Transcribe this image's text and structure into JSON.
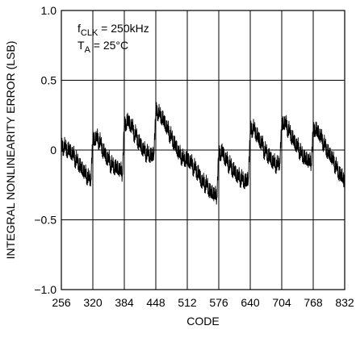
{
  "chart_data": {
    "type": "line",
    "title": "",
    "xlabel": "CODE",
    "ylabel": "INTEGRAL NONLINEARITY ERROR (LSB)",
    "xlim": [
      256,
      832
    ],
    "ylim": [
      -1.0,
      1.0
    ],
    "xticks": [
      256,
      320,
      384,
      448,
      512,
      576,
      640,
      704,
      768,
      832
    ],
    "xtick_labels": [
      "256",
      "320",
      "384",
      "448",
      "512",
      "576",
      "640",
      "704",
      "768",
      "832"
    ],
    "yticks": [
      -1.0,
      -0.5,
      0,
      0.5,
      1.0
    ],
    "ytick_labels": [
      "−1.0",
      "−0.5",
      "0",
      "0.5",
      "1.0"
    ],
    "grid": true,
    "annotations": {
      "fclk_main": "f",
      "fclk_sub": "CLK",
      "fclk_value": " = 250kHz",
      "ta_main": "T",
      "ta_sub": "A",
      "ta_value": " = 25°C"
    },
    "series": [
      {
        "values_x": [
          256,
          260,
          264,
          268,
          272,
          276,
          280,
          284,
          288,
          292,
          296,
          300,
          304,
          308,
          312,
          316,
          320,
          324,
          328,
          332,
          336,
          340,
          344,
          348,
          352,
          356,
          360,
          364,
          368,
          372,
          376,
          380,
          384,
          388,
          392,
          396,
          400,
          404,
          408,
          412,
          416,
          420,
          424,
          428,
          432,
          436,
          440,
          444,
          448,
          452,
          456,
          460,
          464,
          468,
          472,
          476,
          480,
          484,
          488,
          492,
          496,
          500,
          504,
          508,
          512,
          516,
          520,
          524,
          528,
          532,
          536,
          540,
          544,
          548,
          552,
          556,
          560,
          564,
          568,
          572,
          576,
          580,
          584,
          588,
          592,
          596,
          600,
          604,
          608,
          612,
          616,
          620,
          624,
          628,
          632,
          636,
          640,
          644,
          648,
          652,
          656,
          660,
          664,
          668,
          672,
          676,
          680,
          684,
          688,
          692,
          696,
          700,
          704,
          708,
          712,
          716,
          720,
          724,
          728,
          732,
          736,
          740,
          744,
          748,
          752,
          756,
          760,
          764,
          768,
          772,
          776,
          780,
          784,
          788,
          792,
          796,
          800,
          804,
          808,
          812,
          816,
          820,
          824,
          828,
          832
        ],
        "values_y": [
          0.04,
          0.01,
          0.05,
          -0.02,
          0.03,
          -0.04,
          0.0,
          -0.08,
          -0.05,
          -0.12,
          -0.1,
          -0.16,
          -0.14,
          -0.2,
          -0.18,
          -0.22,
          0.1,
          0.06,
          0.12,
          0.05,
          0.08,
          -0.02,
          0.01,
          -0.08,
          -0.03,
          -0.12,
          -0.08,
          -0.14,
          -0.1,
          -0.15,
          -0.12,
          -0.18,
          0.2,
          0.18,
          0.24,
          0.16,
          0.2,
          0.1,
          0.14,
          0.04,
          0.08,
          -0.01,
          0.03,
          -0.04,
          0.0,
          -0.05,
          -0.02,
          -0.04,
          0.3,
          0.26,
          0.28,
          0.22,
          0.24,
          0.16,
          0.18,
          0.1,
          0.12,
          0.04,
          0.06,
          -0.02,
          0.0,
          -0.06,
          -0.04,
          -0.08,
          -0.04,
          -0.1,
          -0.06,
          -0.14,
          -0.1,
          -0.18,
          -0.14,
          -0.24,
          -0.2,
          -0.26,
          -0.22,
          -0.3,
          -0.28,
          -0.32,
          -0.3,
          -0.34,
          0.0,
          -0.04,
          0.02,
          -0.08,
          -0.04,
          -0.12,
          -0.08,
          -0.16,
          -0.12,
          -0.2,
          -0.16,
          -0.22,
          -0.18,
          -0.24,
          -0.2,
          -0.22,
          0.16,
          0.14,
          0.18,
          0.1,
          0.12,
          0.04,
          0.08,
          -0.02,
          0.02,
          -0.06,
          -0.02,
          -0.1,
          -0.06,
          -0.12,
          -0.08,
          -0.1,
          0.2,
          0.18,
          0.22,
          0.14,
          0.16,
          0.08,
          0.1,
          0.02,
          0.06,
          -0.02,
          0.0,
          -0.06,
          -0.04,
          -0.08,
          -0.06,
          -0.1,
          0.16,
          0.14,
          0.16,
          0.1,
          0.12,
          0.04,
          0.06,
          -0.02,
          0.0,
          -0.06,
          -0.04,
          -0.12,
          -0.1,
          -0.18,
          -0.16,
          -0.2,
          -0.22
        ]
      }
    ]
  }
}
